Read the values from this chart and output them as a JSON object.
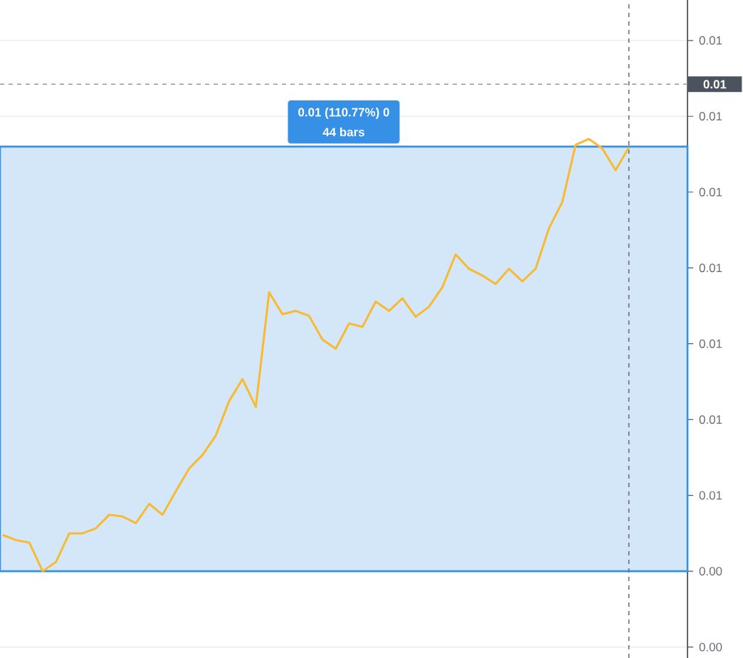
{
  "chart_data": {
    "type": "line",
    "categories": [
      null,
      null,
      null,
      null,
      null,
      null,
      null,
      null,
      null,
      null,
      null,
      null,
      null,
      null,
      null,
      null,
      null,
      null,
      null,
      null,
      null,
      null,
      null,
      null,
      null,
      null,
      null,
      null,
      null,
      null,
      null,
      null,
      null,
      null,
      null,
      null,
      null,
      null,
      null,
      null,
      null,
      null,
      null,
      null,
      null,
      null,
      null,
      null
    ],
    "series": [
      {
        "color": "#f9b931",
        "values": [
          0.00493,
          0.00487,
          0.00484,
          0.0045,
          0.00461,
          0.00495,
          0.00495,
          0.00501,
          0.00517,
          0.00515,
          0.00507,
          0.0053,
          0.00517,
          0.00545,
          0.00572,
          0.00588,
          0.00611,
          0.00652,
          0.00678,
          0.00645,
          0.00781,
          0.00755,
          0.00759,
          0.00753,
          0.00725,
          0.00714,
          0.00744,
          0.0074,
          0.0077,
          0.00759,
          0.00774,
          0.00752,
          0.00764,
          0.00787,
          0.00826,
          0.00809,
          0.00801,
          0.00791,
          0.00809,
          0.00794,
          0.00809,
          0.00857,
          0.00888,
          0.00956,
          0.00963,
          0.00952,
          0.00926,
          0.00953
        ]
      }
    ],
    "ylim": [
      0.00347,
      0.01128
    ],
    "yticks": [
      {
        "value": 0.0036,
        "label": "0.00"
      },
      {
        "value": 0.0045,
        "label": "0.00"
      },
      {
        "value": 0.0054,
        "label": "0.01"
      },
      {
        "value": 0.0063,
        "label": "0.01"
      },
      {
        "value": 0.0072,
        "label": "0.01"
      },
      {
        "value": 0.0081,
        "label": "0.01"
      },
      {
        "value": 0.009,
        "label": "0.01"
      },
      {
        "value": 0.0099,
        "label": "0.01"
      },
      {
        "value": 0.0108,
        "label": "0.01"
      }
    ],
    "grid": "y",
    "bands": [
      {
        "axis": "y",
        "from": 0.0045,
        "to": 0.00954,
        "label": "0.01 (110.77%) 0",
        "color": "#3590e6"
      }
    ],
    "annotations": [
      "44 bars"
    ],
    "ref_lines": [
      {
        "axis": "y",
        "value": 0.01028,
        "label": "0.01",
        "line_style": "dashed",
        "color": "#9598a1"
      }
    ]
  }
}
